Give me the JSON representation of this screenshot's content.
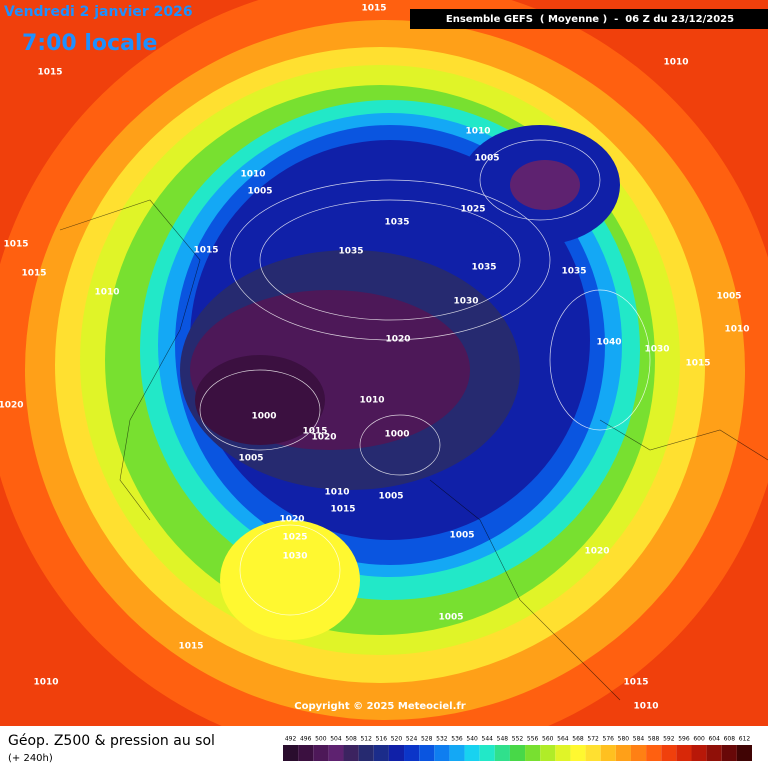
{
  "header": {
    "date": "Vendredi 2 janvier 2026",
    "time": "7:00 locale",
    "run": "Ensemble GEFS  ( Moyenne )  -  06 Z du 23/12/2025"
  },
  "footer": {
    "title": "Géop. Z500 & pression au sol",
    "range": "(+ 240h)",
    "copyright": "Copyright © 2025 Meteociel.fr"
  },
  "scale": {
    "levels": [
      492,
      496,
      500,
      504,
      508,
      512,
      516,
      520,
      524,
      528,
      532,
      536,
      540,
      544,
      548,
      552,
      556,
      560,
      564,
      568,
      572,
      576,
      580,
      584,
      588,
      592,
      596,
      600,
      604,
      608,
      612
    ],
    "colors": [
      "#2a0d2e",
      "#3b1040",
      "#4d1858",
      "#5e2270",
      "#3c2360",
      "#262a70",
      "#1b2c8a",
      "#1020a8",
      "#0b35c8",
      "#0a55e0",
      "#0f7ef0",
      "#14a8f5",
      "#18d2f0",
      "#22e8c8",
      "#30e08c",
      "#48d848",
      "#78e030",
      "#b0ec28",
      "#e0f428",
      "#fff830",
      "#ffe030",
      "#ffc020",
      "#ffa018",
      "#ff8014",
      "#ff6010",
      "#f0400c",
      "#d82808",
      "#b81808",
      "#901008",
      "#680808",
      "#400404"
    ]
  },
  "isobar_labels": [
    "1015",
    "1015",
    "1010",
    "1010",
    "1005",
    "1010",
    "1005",
    "1035",
    "1025",
    "1015",
    "1035",
    "1035",
    "1035",
    "1015",
    "1010",
    "1030",
    "1005",
    "1010",
    "1020",
    "1040",
    "1030",
    "1015",
    "1020",
    "1010",
    "1000",
    "1015",
    "1020",
    "1000",
    "1005",
    "1010",
    "1005",
    "1015",
    "1020",
    "1025",
    "1005",
    "1030",
    "1020",
    "1005",
    "1015",
    "1010",
    "1015",
    "1010",
    "1015"
  ]
}
